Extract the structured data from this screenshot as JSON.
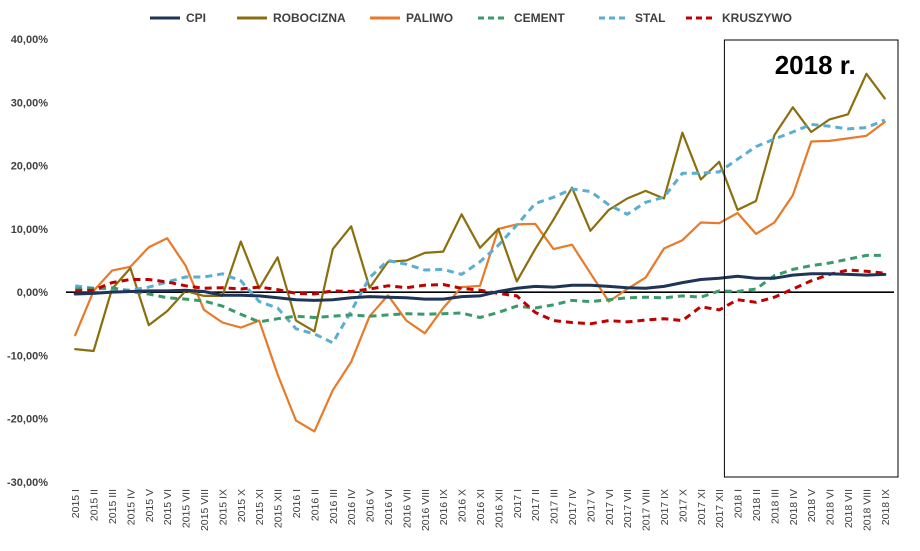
{
  "chart_data": {
    "type": "line",
    "title": "",
    "xlabel": "",
    "ylabel": "",
    "ylim": [
      -30,
      40
    ],
    "y_ticks": [
      -30,
      -20,
      -10,
      0,
      10,
      20,
      30,
      40
    ],
    "y_tick_labels": [
      "-30,00%",
      "-20,00%",
      "-10,00%",
      "0,00%",
      "10,00%",
      "20,00%",
      "30,00%",
      "40,00%"
    ],
    "legend_position": "top",
    "annotation": {
      "text": "2018 r.",
      "from_category": "2018 I",
      "to_category": "2018 IX"
    },
    "categories": [
      "2015 I",
      "2015 II",
      "2015 III",
      "2015 IV",
      "2015 V",
      "2015 VI",
      "2015 VII",
      "2015 VIII",
      "2015 IX",
      "2015 X",
      "2015 XI",
      "2015 XII",
      "2016 I",
      "2016 II",
      "2016 III",
      "2016 IV",
      "2016 V",
      "2016 VI",
      "2016 VII",
      "2016 VIII",
      "2016 IX",
      "2016 X",
      "2016 XI",
      "2016 XII",
      "2017 I",
      "2017 II",
      "2017 III",
      "2017 IV",
      "2017 V",
      "2017 VI",
      "2017 VII",
      "2017 VIII",
      "2017 IX",
      "2017 X",
      "2017 XI",
      "2017 XII",
      "2018 I",
      "2018 II",
      "2018 III",
      "2018 IV",
      "2018 V",
      "2018 VI",
      "2018 VII",
      "2018 VIII",
      "2018 IX"
    ],
    "series": [
      {
        "name": "CPI",
        "color": "#1f3557",
        "dash": "solid",
        "values": [
          -0.3,
          -0.2,
          0.0,
          0.1,
          0.2,
          0.2,
          0.3,
          0.1,
          -0.5,
          -0.5,
          -0.6,
          -0.9,
          -1.2,
          -1.3,
          -1.2,
          -0.9,
          -0.7,
          -0.8,
          -0.9,
          -1.1,
          -1.1,
          -0.7,
          -0.6,
          0.1,
          0.6,
          0.9,
          0.8,
          1.1,
          1.1,
          0.9,
          0.7,
          0.6,
          0.9,
          1.5,
          2.0,
          2.2,
          2.5,
          2.2,
          2.2,
          2.7,
          2.9,
          2.9,
          2.8,
          2.7,
          2.8
        ]
      },
      {
        "name": "ROBOCIZNA",
        "color": "#8b6f0e",
        "dash": "solid",
        "values": [
          -9.0,
          -9.3,
          0.5,
          3.8,
          -5.2,
          -3.0,
          0.2,
          -0.6,
          -0.6,
          8.0,
          0.6,
          5.5,
          -4.5,
          -6.2,
          6.8,
          10.4,
          0.7,
          4.8,
          5.0,
          6.2,
          6.4,
          12.3,
          7.0,
          10.0,
          1.7,
          6.8,
          11.5,
          16.5,
          9.7,
          13.0,
          14.8,
          16.0,
          14.8,
          25.2,
          17.8,
          20.6,
          13.0,
          14.4,
          24.8,
          29.2,
          25.3,
          27.3,
          28.1,
          34.5,
          30.6
        ]
      },
      {
        "name": "PALIWO",
        "color": "#e87a28",
        "dash": "solid",
        "values": [
          -6.8,
          0.2,
          3.4,
          4.0,
          7.1,
          8.5,
          4.2,
          -2.8,
          -4.8,
          -5.6,
          -4.5,
          -13.0,
          -20.3,
          -22.0,
          -15.5,
          -11.0,
          -3.8,
          -0.5,
          -4.5,
          -6.5,
          -2.5,
          0.8,
          1.0,
          10.0,
          10.7,
          10.8,
          6.8,
          7.5,
          3.0,
          -1.5,
          0.5,
          2.3,
          6.9,
          8.2,
          11.0,
          10.9,
          12.5,
          9.2,
          11.0,
          15.3,
          23.8,
          23.9,
          24.3,
          24.7,
          26.9
        ]
      },
      {
        "name": "CEMENT",
        "color": "#3a9a6a",
        "dash": "dashed",
        "values": [
          0.5,
          0.6,
          0.7,
          0.1,
          -0.3,
          -0.9,
          -1.1,
          -1.4,
          -2.2,
          -3.5,
          -4.7,
          -4.2,
          -3.8,
          -4.0,
          -3.8,
          -3.6,
          -3.8,
          -3.6,
          -3.4,
          -3.5,
          -3.4,
          -3.3,
          -4.0,
          -3.2,
          -2.2,
          -2.5,
          -2.0,
          -1.3,
          -1.5,
          -1.2,
          -0.9,
          -0.8,
          -0.9,
          -0.6,
          -0.8,
          0.2,
          0.1,
          0.5,
          2.6,
          3.6,
          4.2,
          4.6,
          5.2,
          5.8,
          5.8
        ]
      },
      {
        "name": "STAL",
        "color": "#5aaed0",
        "dash": "dashed",
        "values": [
          1.0,
          0.6,
          0.5,
          0.3,
          0.8,
          1.6,
          2.4,
          2.4,
          2.9,
          1.8,
          -1.5,
          -2.5,
          -5.8,
          -6.6,
          -8.0,
          -3.0,
          2.3,
          5.0,
          4.4,
          3.5,
          3.6,
          2.8,
          4.8,
          7.4,
          10.6,
          14.0,
          15.0,
          16.3,
          15.9,
          13.8,
          12.3,
          14.2,
          15.0,
          18.8,
          18.8,
          19.0,
          21.0,
          23.0,
          24.2,
          25.3,
          26.5,
          26.2,
          25.8,
          26.0,
          27.2
        ]
      },
      {
        "name": "KRUSZYWO",
        "color": "#c00000",
        "dash": "dashed",
        "values": [
          0.2,
          0.3,
          1.5,
          2.0,
          2.0,
          1.6,
          1.0,
          0.6,
          0.7,
          0.5,
          0.8,
          0.4,
          -0.2,
          -0.3,
          0.2,
          0.1,
          0.5,
          1.0,
          0.7,
          1.1,
          1.2,
          0.6,
          0.3,
          -0.2,
          -0.6,
          -3.2,
          -4.5,
          -4.8,
          -5.0,
          -4.5,
          -4.7,
          -4.4,
          -4.2,
          -4.5,
          -2.3,
          -2.8,
          -1.2,
          -1.6,
          -0.8,
          0.5,
          1.8,
          2.8,
          3.5,
          3.3,
          3.0
        ]
      }
    ]
  }
}
